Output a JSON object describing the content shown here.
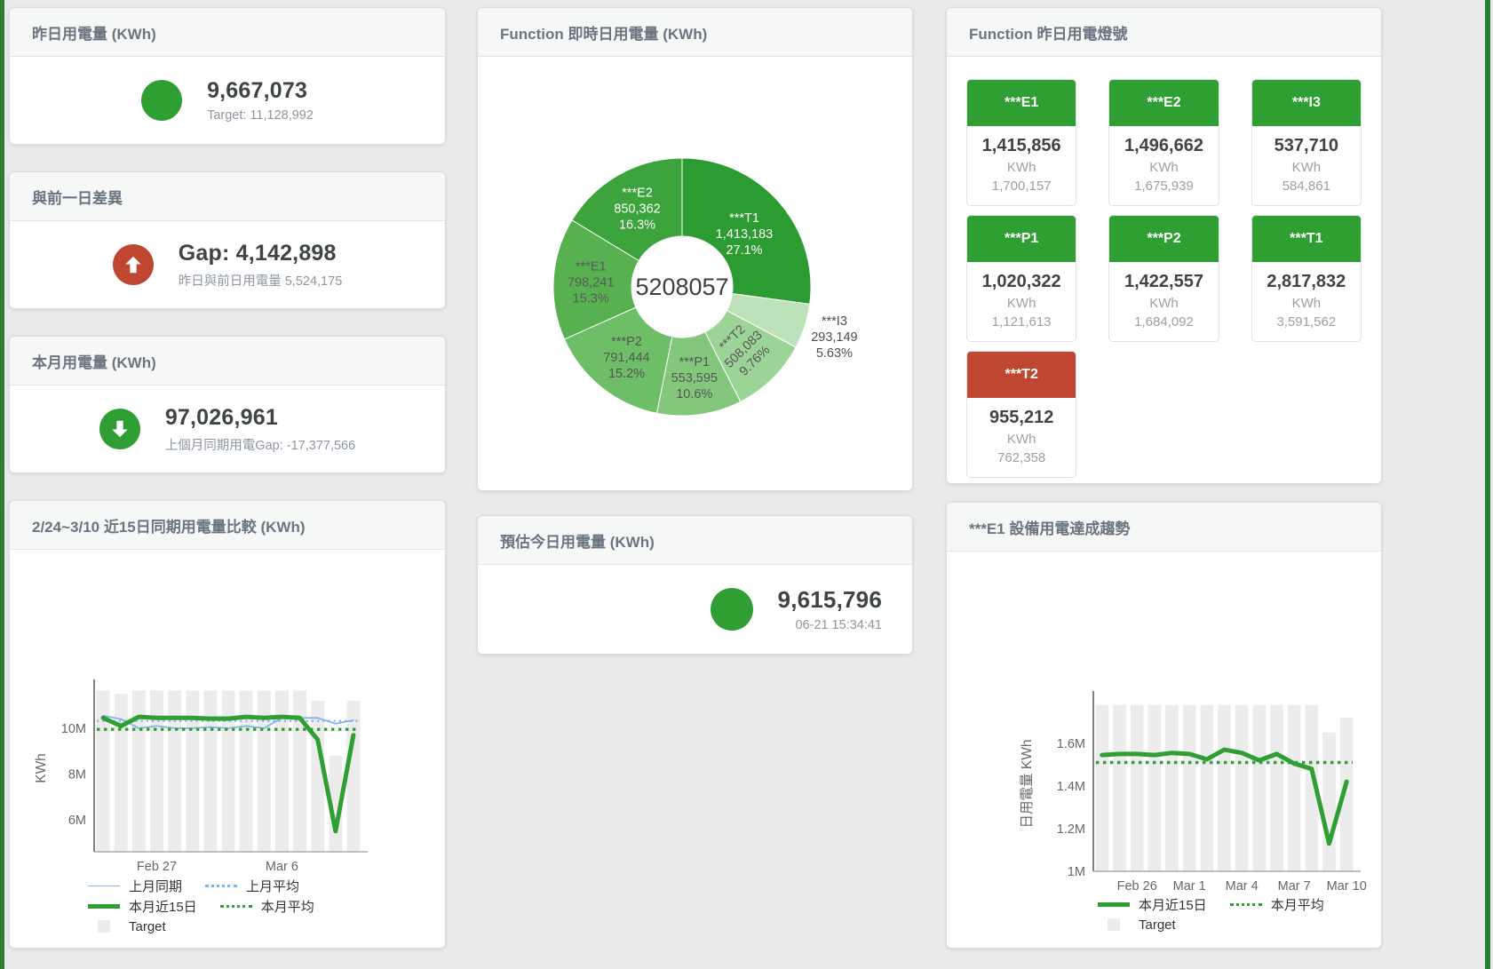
{
  "page": {
    "bg_color": "#e9eaeb",
    "edge_color": "#2f7d33",
    "accent_green": "#2f9e33",
    "accent_red": "#bf4630"
  },
  "cards": {
    "yesterday": {
      "title": "昨日用電量 (KWh)",
      "value": "9,667,073",
      "subtext": "Target: 11,128,992",
      "status_color": "#2f9e33"
    },
    "diff": {
      "title": "與前一日差異",
      "value": "Gap: 4,142,898",
      "subtext": "昨日與前日用電量 5,524,175",
      "status_color": "#bf4630",
      "direction": "up"
    },
    "month": {
      "title": "本月用電量 (KWh)",
      "value": "97,026,961",
      "subtext": "上個月同期用電Gap: -17,377,566",
      "status_color": "#2f9e33",
      "direction": "down"
    },
    "estimate": {
      "title": "預估今日用電量 (KWh)",
      "value": "9,615,796",
      "subtext": "06-21 15:34:41",
      "status_color": "#2f9e33"
    }
  },
  "lights_panel": {
    "title": "Function 昨日用電燈號",
    "tiles": [
      {
        "label": "***E1",
        "value": "1,415,856",
        "unit": "KWh",
        "target": "1,700,157",
        "color": "#2f9e33"
      },
      {
        "label": "***E2",
        "value": "1,496,662",
        "unit": "KWh",
        "target": "1,675,939",
        "color": "#2f9e33"
      },
      {
        "label": "***I3",
        "value": "537,710",
        "unit": "KWh",
        "target": "584,861",
        "color": "#2f9e33"
      },
      {
        "label": "***P1",
        "value": "1,020,322",
        "unit": "KWh",
        "target": "1,121,613",
        "color": "#2f9e33"
      },
      {
        "label": "***P2",
        "value": "1,422,557",
        "unit": "KWh",
        "target": "1,684,092",
        "color": "#2f9e33"
      },
      {
        "label": "***T1",
        "value": "2,817,832",
        "unit": "KWh",
        "target": "3,591,562",
        "color": "#2f9e33"
      },
      {
        "label": "***T2",
        "value": "955,212",
        "unit": "KWh",
        "target": "762,358",
        "color": "#bf4630"
      }
    ]
  },
  "chart_data": [
    {
      "type": "pie",
      "title": "Function 即時日用電量 (KWh)",
      "center_label": "5208057",
      "donut": true,
      "slices": [
        {
          "name": "***T1",
          "value": 1413183,
          "value_label": "1,413,183",
          "pct_label": "27.1%",
          "color": "#2c9b31",
          "text_color": "#ffffff",
          "label_r": 93
        },
        {
          "name": "***I3",
          "value": 293149,
          "value_label": "293,149",
          "pct_label": "5.63%",
          "color": "#bde2ba",
          "text_color": "#4e4e4e",
          "label_outside": true
        },
        {
          "name": "***T2",
          "value": 508083,
          "value_label": "508,083",
          "pct_label": "9.76%",
          "color": "#9cd397",
          "text_color": "#565656",
          "label_r": 97,
          "label_rotate": true
        },
        {
          "name": "***P1",
          "value": 553595,
          "value_label": "553,595",
          "pct_label": "10.6%",
          "color": "#83c77c",
          "text_color": "#565656",
          "label_r": 102
        },
        {
          "name": "***P2",
          "value": 791444,
          "value_label": "791,444",
          "pct_label": "15.2%",
          "color": "#6ebd67",
          "text_color": "#565656",
          "label_r": 100
        },
        {
          "name": "***E1",
          "value": 798241,
          "value_label": "798,241",
          "pct_label": "15.3%",
          "color": "#58b151",
          "text_color": "#5a5a5a",
          "label_r": 103
        },
        {
          "name": "***E2",
          "value": 850362,
          "value_label": "850,362",
          "pct_label": "16.3%",
          "color": "#3ca33d",
          "text_color": "#ffffff",
          "label_r": 103
        }
      ]
    },
    {
      "type": "line",
      "title": "2/24~3/10 近15日同期用電量比較 (KWh)",
      "ylabel": "KWh",
      "ylim": [
        4.6,
        11.9
      ],
      "yticks": [
        {
          "value": 6,
          "label": "6M"
        },
        {
          "value": 8,
          "label": "8M"
        },
        {
          "value": 10,
          "label": "10M"
        }
      ],
      "xticks": [
        {
          "index": 3,
          "label": "Feb 27"
        },
        {
          "index": 10,
          "label": "Mar 6"
        }
      ],
      "target_bars": {
        "name": "Target",
        "color": "#ececec",
        "values": [
          11.65,
          11.5,
          11.65,
          11.65,
          11.65,
          11.65,
          11.65,
          11.65,
          11.65,
          11.65,
          11.65,
          11.65,
          11.2,
          8.8,
          11.2
        ]
      },
      "series": [
        {
          "name": "上月同期",
          "type": "line",
          "color": "#7cb5ec",
          "width": 1.8,
          "values": [
            10.55,
            10.4,
            10.0,
            10.1,
            10.0,
            10.0,
            10.05,
            10.0,
            10.1,
            10.0,
            10.45,
            10.45,
            10.45,
            10.2,
            10.35
          ]
        },
        {
          "name": "上月平均",
          "type": "avg",
          "color": "#7cb5ec",
          "value": 10.32
        },
        {
          "name": "本月近15日",
          "type": "line",
          "color": "#2f9e33",
          "width": 5,
          "values": [
            10.45,
            10.1,
            10.5,
            10.45,
            10.45,
            10.45,
            10.42,
            10.42,
            10.5,
            10.45,
            10.5,
            10.45,
            9.5,
            5.5,
            9.7
          ]
        },
        {
          "name": "本月平均",
          "type": "avg",
          "color": "#2f9e33",
          "value": 9.95
        }
      ],
      "legend_rows": [
        [
          "上月同期",
          "上月平均"
        ],
        [
          "本月近15日",
          "本月平均"
        ],
        [
          "Target"
        ]
      ]
    },
    {
      "type": "line",
      "title": "***E1 設備用電達成趨勢",
      "ylabel": "日用電量 KWh",
      "ylim": [
        1.0,
        1.82
      ],
      "yticks": [
        {
          "value": 1,
          "label": "1M"
        },
        {
          "value": 1.2,
          "label": "1.2M"
        },
        {
          "value": 1.4,
          "label": "1.4M"
        },
        {
          "value": 1.6,
          "label": "1.6M"
        }
      ],
      "xticks": [
        {
          "index": 2,
          "label": "Feb 26"
        },
        {
          "index": 5,
          "label": "Mar 1"
        },
        {
          "index": 8,
          "label": "Mar 4"
        },
        {
          "index": 11,
          "label": "Mar 7"
        },
        {
          "index": 14,
          "label": "Mar 10"
        }
      ],
      "target_bars": {
        "name": "Target",
        "color": "#ececec",
        "values": [
          1.78,
          1.78,
          1.78,
          1.78,
          1.78,
          1.78,
          1.78,
          1.78,
          1.78,
          1.78,
          1.78,
          1.78,
          1.78,
          1.65,
          1.72
        ]
      },
      "series": [
        {
          "name": "本月近15日",
          "type": "line",
          "color": "#2f9e33",
          "width": 5,
          "values": [
            1.545,
            1.55,
            1.55,
            1.545,
            1.555,
            1.55,
            1.525,
            1.57,
            1.555,
            1.52,
            1.55,
            1.505,
            1.48,
            1.13,
            1.42
          ]
        },
        {
          "name": "本月平均",
          "type": "avg",
          "color": "#2f9e33",
          "value": 1.51
        }
      ],
      "legend_rows": [
        [
          "本月近15日",
          "本月平均"
        ],
        [
          "Target"
        ]
      ]
    }
  ]
}
